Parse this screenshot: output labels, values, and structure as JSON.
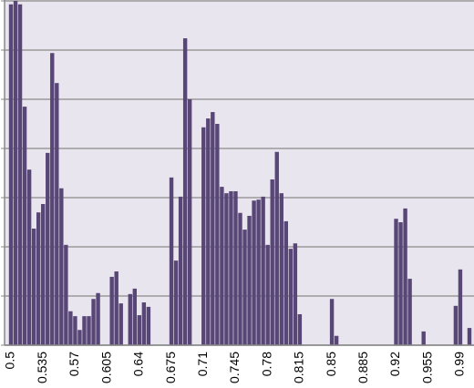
{
  "chart_data": {
    "type": "bar",
    "categories": [
      "0.5",
      null,
      null,
      null,
      null,
      null,
      null,
      "0.535",
      null,
      null,
      null,
      null,
      null,
      null,
      "0.57",
      null,
      null,
      null,
      null,
      null,
      null,
      "0.605",
      null,
      null,
      null,
      null,
      null,
      null,
      "0.64",
      null,
      null,
      null,
      null,
      null,
      null,
      "0.675",
      null,
      null,
      null,
      null,
      null,
      null,
      "0.71",
      null,
      null,
      null,
      null,
      null,
      null,
      "0.745",
      null,
      null,
      null,
      null,
      null,
      null,
      "0.78",
      null,
      null,
      null,
      null,
      null,
      null,
      "0.815",
      null,
      null,
      null,
      null,
      null,
      null,
      "0.85",
      null,
      null,
      null,
      null,
      null,
      null,
      "0.885",
      null,
      null,
      null,
      null,
      null,
      null,
      "0.92",
      null,
      null,
      null,
      null,
      null,
      null,
      "0.955",
      null,
      null,
      null,
      null,
      null,
      null,
      "0.99",
      null,
      null
    ],
    "values": [
      6.93,
      7.0,
      6.93,
      4.85,
      3.57,
      2.37,
      2.7,
      2.87,
      3.91,
      5.94,
      5.33,
      3.19,
      2.04,
      0.69,
      0.59,
      0.31,
      0.59,
      0.59,
      0.94,
      1.06,
      0,
      0,
      1.39,
      1.5,
      0.85,
      0,
      1.04,
      1.15,
      0.61,
      0.87,
      0.78,
      0,
      0,
      0,
      0,
      3.41,
      1.72,
      3.02,
      6.24,
      5.0,
      0,
      0,
      4.43,
      4.61,
      4.74,
      4.5,
      3.22,
      3.09,
      3.13,
      3.13,
      2.69,
      2.35,
      2.63,
      2.94,
      2.96,
      3.02,
      2.04,
      3.37,
      3.93,
      3.09,
      2.52,
      1.96,
      2.07,
      0.63,
      0,
      0,
      0,
      0,
      0,
      0,
      0.94,
      0.19,
      0,
      0,
      0,
      0,
      0,
      0,
      0,
      0,
      0,
      0,
      0,
      0,
      2.57,
      2.5,
      2.78,
      1.35,
      0,
      0,
      0.28,
      0,
      0,
      0,
      0,
      0,
      0,
      0.8,
      1.54,
      0,
      0.35
    ],
    "color": "#584677",
    "ylim": [
      0,
      7
    ],
    "yticks": [
      0,
      1,
      2,
      3,
      4,
      5,
      6,
      7
    ],
    "grid": true
  }
}
